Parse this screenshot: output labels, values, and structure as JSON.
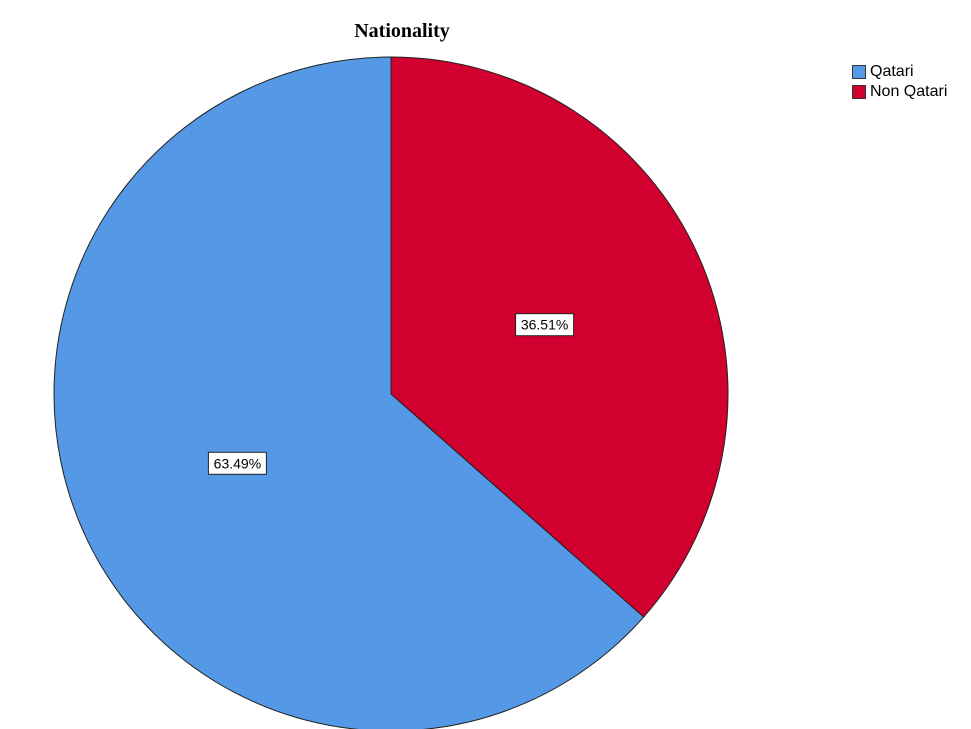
{
  "chart_data": {
    "type": "pie",
    "title": "Nationality",
    "slices": [
      {
        "name": "Qatari",
        "value": 63.49,
        "label": "63.49%",
        "color": "#5599e6"
      },
      {
        "name": "Non Qatari",
        "value": 36.51,
        "label": "36.51%",
        "color": "#d1002f"
      }
    ],
    "legend": {
      "placement": "top-right"
    }
  }
}
